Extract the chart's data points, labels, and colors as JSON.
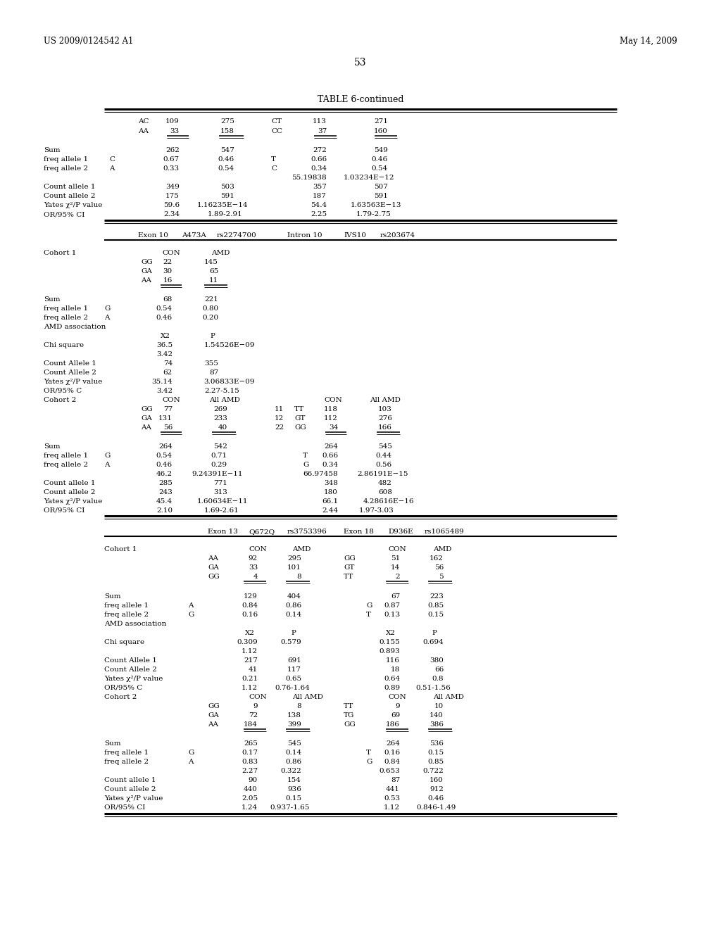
{
  "header_left": "US 2009/0124542 A1",
  "header_right": "May 14, 2009",
  "page_number": "53",
  "table_title": "TABLE 6-continued",
  "bg": "#ffffff",
  "fg": "#000000",
  "fs": 7.5
}
